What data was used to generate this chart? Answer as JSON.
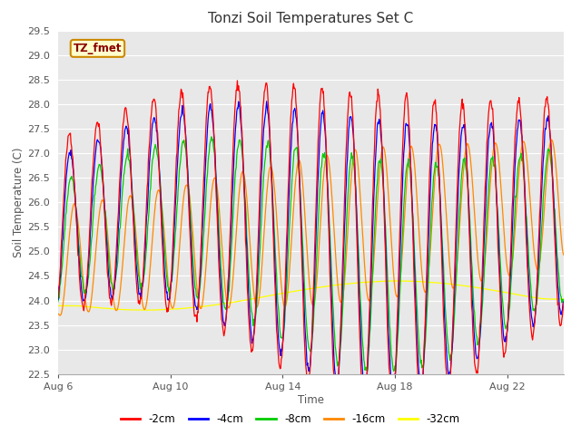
{
  "title": "Tonzi Soil Temperatures Set C",
  "xlabel": "Time",
  "ylabel": "Soil Temperature (C)",
  "ylim": [
    22.5,
    29.5
  ],
  "yticks": [
    22.5,
    23.0,
    23.5,
    24.0,
    24.5,
    25.0,
    25.5,
    26.0,
    26.5,
    27.0,
    27.5,
    28.0,
    28.5,
    29.0,
    29.5
  ],
  "xtick_labels": [
    "Aug 6",
    "Aug 10",
    "Aug 14",
    "Aug 18",
    "Aug 22"
  ],
  "xtick_positions": [
    0,
    4,
    8,
    12,
    16
  ],
  "series_colors": {
    "-2cm": "#ff0000",
    "-4cm": "#0000ff",
    "-8cm": "#00cc00",
    "-16cm": "#ff8800",
    "-32cm": "#ffff00"
  },
  "legend_label": "TZ_fmet",
  "legend_box_color": "#ffffcc",
  "legend_box_edge": "#cc8800",
  "plot_bg_color": "#e8e8e8",
  "fig_bg_color": "#ffffff",
  "n_days": 18,
  "n_per_day": 48
}
